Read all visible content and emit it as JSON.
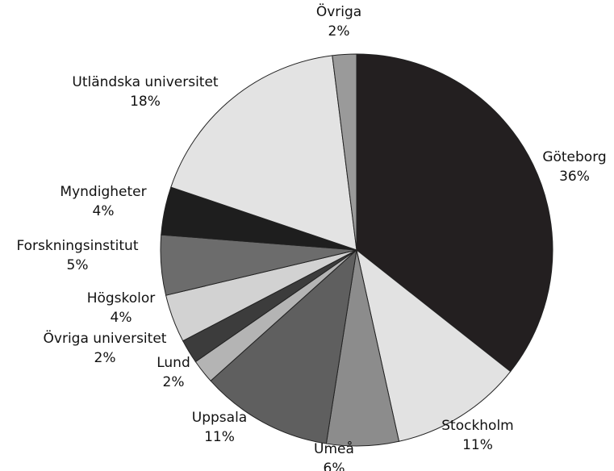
{
  "chart_data": {
    "type": "pie",
    "categories": [
      "Göteborg",
      "Stockholm",
      "Umeå",
      "Uppsala",
      "Lund",
      "Övriga universitet",
      "Högskolor",
      "Forskningsinstitut",
      "Myndigheter",
      "Utländska universitet",
      "Övriga"
    ],
    "values": [
      36,
      11,
      6,
      11,
      2,
      2,
      4,
      5,
      4,
      18,
      2
    ],
    "value_labels": [
      "36%",
      "11%",
      "6%",
      "11%",
      "2%",
      "2%",
      "4%",
      "5%",
      "4%",
      "18%",
      "2%"
    ],
    "colors": [
      "#231f20",
      "#e2e2e2",
      "#8c8c8c",
      "#5f5f5f",
      "#b4b4b4",
      "#3c3c3c",
      "#d2d2d2",
      "#6c6c6c",
      "#1e1e1e",
      "#e3e3e3",
      "#9a9a9a"
    ]
  }
}
